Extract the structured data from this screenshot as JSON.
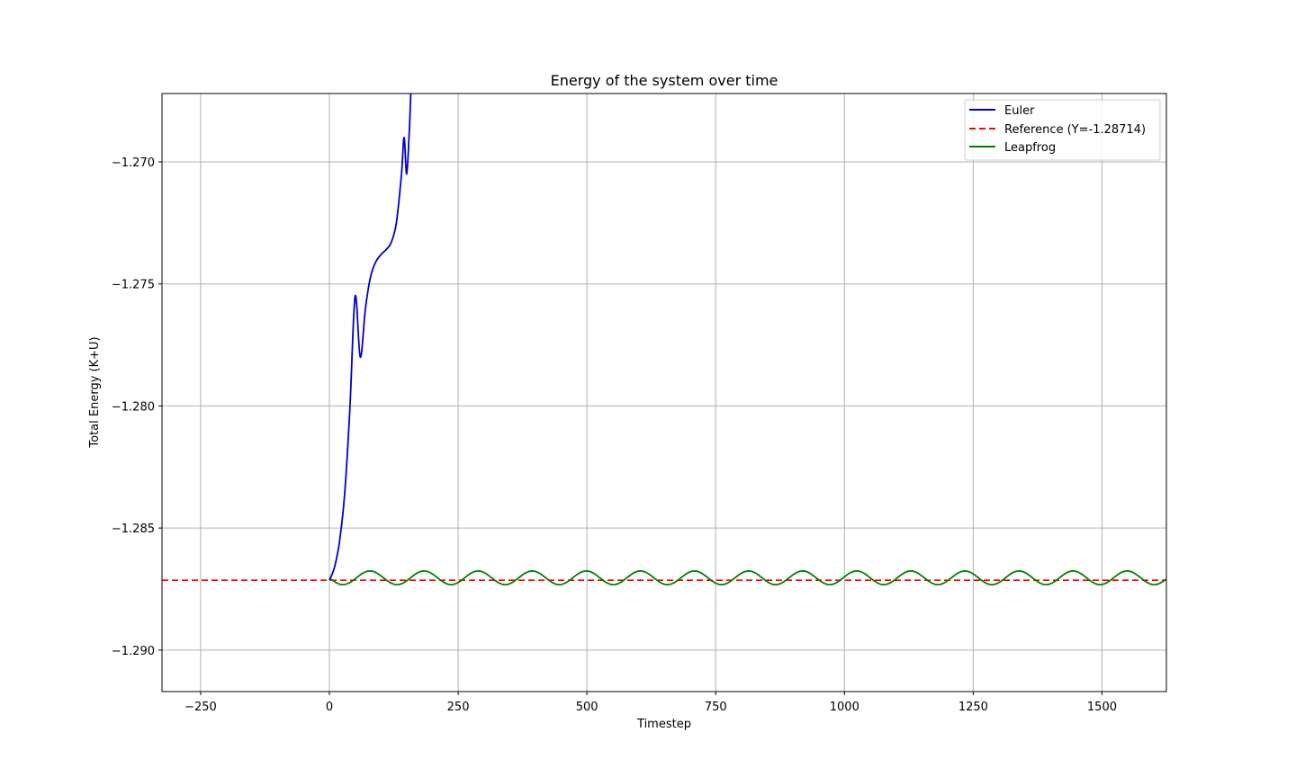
{
  "chart_data": {
    "type": "line",
    "title": "Energy of the system over time",
    "xlabel": "Timestep",
    "ylabel": "Total Energy (K+U)",
    "xlim": [
      -325,
      1625
    ],
    "ylim": [
      -1.2917,
      -1.2672
    ],
    "xticks": [
      -250,
      0,
      250,
      500,
      750,
      1000,
      1250,
      1500
    ],
    "xtick_labels": [
      "−250",
      "0",
      "250",
      "500",
      "750",
      "1000",
      "1250",
      "1500"
    ],
    "yticks": [
      -1.29,
      -1.285,
      -1.28,
      -1.275,
      -1.27
    ],
    "ytick_labels": [
      "−1.290",
      "−1.285",
      "−1.280",
      "−1.275",
      "−1.270"
    ],
    "grid": true,
    "legend_position": "top-right",
    "reference": {
      "y": -1.28714,
      "name": "Reference (Y=-1.28714)",
      "color": "#ff0000",
      "style": "dashed"
    },
    "series": [
      {
        "name": "Euler",
        "color": "#0000cc",
        "x": [
          0,
          10,
          20,
          30,
          40,
          50,
          60,
          70,
          80,
          90,
          100,
          110,
          120,
          130,
          140,
          145,
          150,
          155,
          158
        ],
        "y": [
          -1.28714,
          -1.2866,
          -1.2855,
          -1.2835,
          -1.28,
          -1.2755,
          -1.278,
          -1.276,
          -1.2747,
          -1.2741,
          -1.2738,
          -1.2736,
          -1.2733,
          -1.2725,
          -1.2705,
          -1.269,
          -1.2705,
          -1.2688,
          -1.2672
        ]
      },
      {
        "name": "Leapfrog",
        "color": "#008000",
        "period": 105,
        "amplitude": 0.00028,
        "offset": -1.28704,
        "x_start": 0,
        "x_end": 1625
      }
    ]
  }
}
